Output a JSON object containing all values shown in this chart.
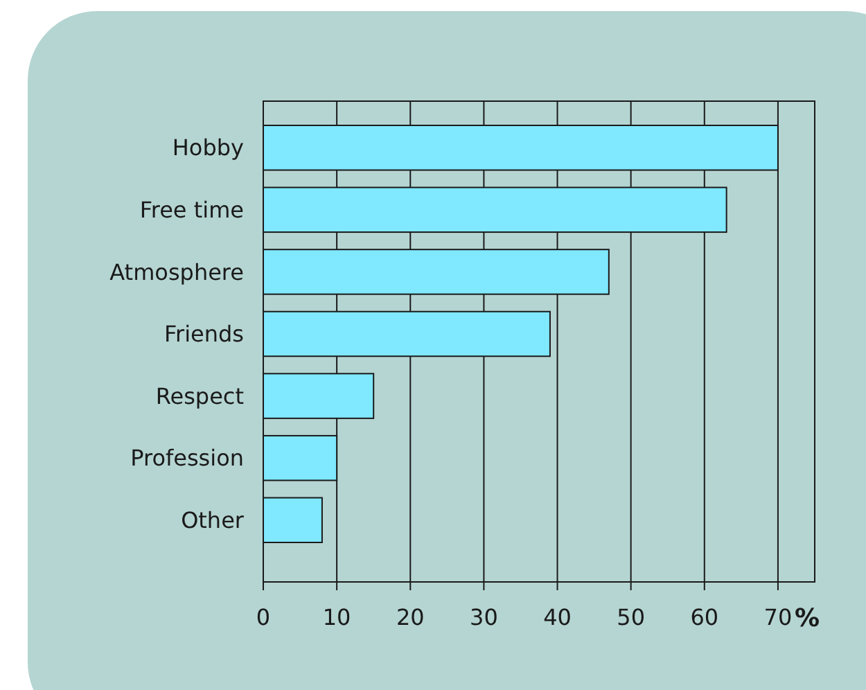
{
  "chart_data": {
    "type": "bar",
    "orientation": "horizontal",
    "xlabel": "%",
    "categories": [
      "Hobby",
      "Free time",
      "Atmosphere",
      "Friends",
      "Respect",
      "Profession",
      "Other"
    ],
    "values": [
      70,
      63,
      47,
      39,
      15,
      10,
      8
    ],
    "color": "#80e8ff",
    "xlim": [
      0,
      75
    ],
    "xticks": [
      0,
      10,
      20,
      30,
      40,
      50,
      60,
      70
    ],
    "grid": "x"
  }
}
